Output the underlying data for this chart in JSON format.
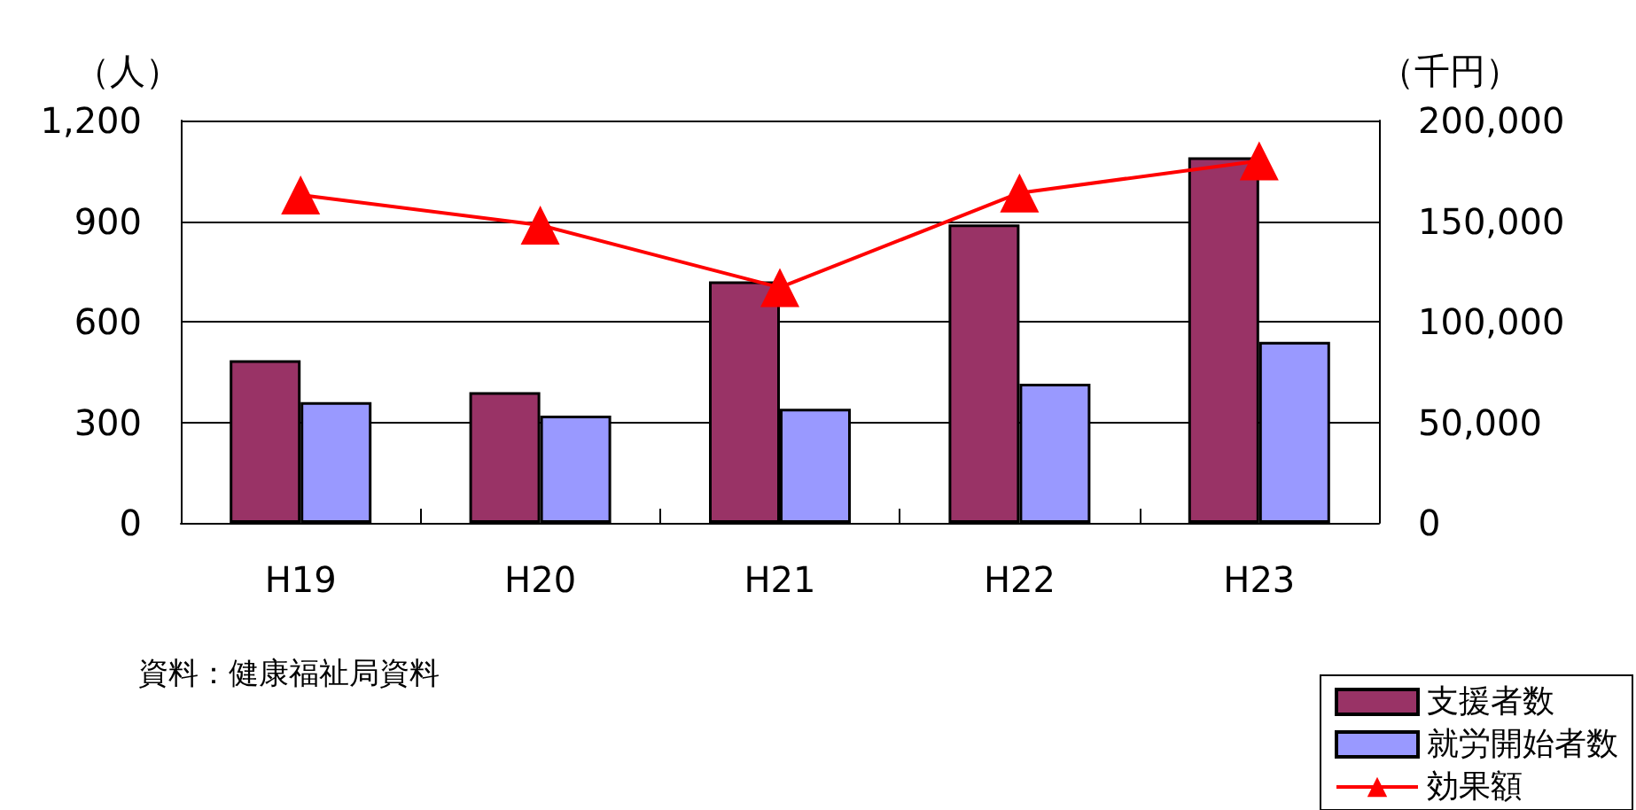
{
  "chart_data": {
    "type": "bar",
    "ylabel": "（人）",
    "y2label": "（千円）",
    "categories": [
      "H19",
      "H20",
      "H21",
      "H22",
      "H23"
    ],
    "series": [
      {
        "name": "支援者数",
        "color": "#993366",
        "values": [
          485,
          390,
          720,
          890,
          1090
        ]
      },
      {
        "name": "就労開始者数",
        "color": "#9999ff",
        "values": [
          360,
          320,
          340,
          415,
          540
        ]
      },
      {
        "name": "効果額",
        "type": "line",
        "axis": "y2",
        "color": "#ff0000",
        "marker": "triangle",
        "values": [
          163000,
          148000,
          117000,
          164000,
          180000
        ]
      }
    ],
    "ylim": [
      0,
      1200
    ],
    "yticks": [
      0,
      300,
      600,
      900,
      {
        "value": 1200,
        "label": "1,200"
      }
    ],
    "y2lim": [
      0,
      200000
    ],
    "y2ticks": [
      0,
      {
        "value": 50000,
        "label": "50,000"
      },
      {
        "value": 100000,
        "label": "100,000"
      },
      {
        "value": 150000,
        "label": "150,000"
      },
      {
        "value": 200000,
        "label": "200,000"
      }
    ],
    "grid": "y",
    "legend": "bottom right",
    "annotations": [
      "資料：健康福祉局資料"
    ]
  }
}
